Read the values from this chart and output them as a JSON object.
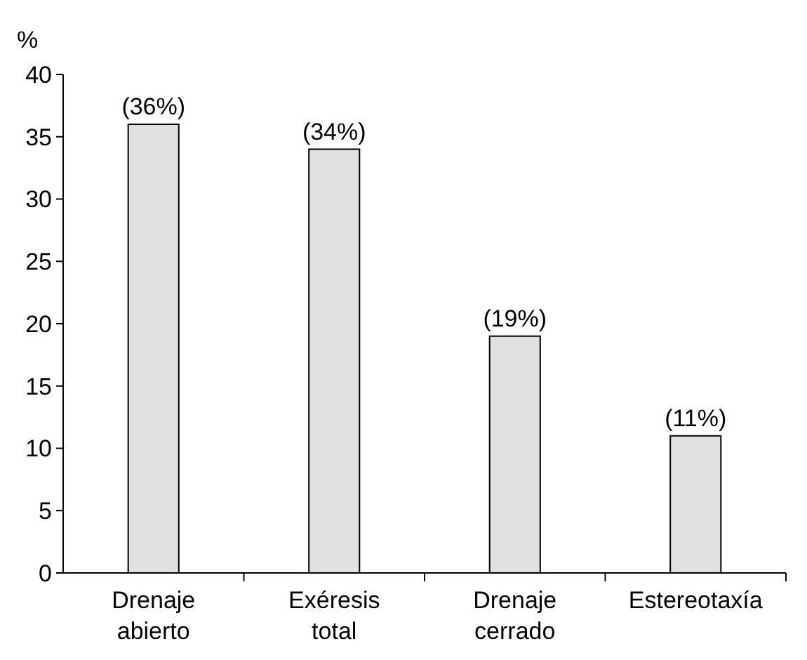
{
  "chart_data": {
    "type": "bar",
    "ylabel": "%",
    "categories": [
      "Drenaje abierto",
      "Exéresis total",
      "Drenaje cerrado",
      "Estereotaxía"
    ],
    "values": [
      36,
      34,
      19,
      11
    ],
    "value_labels": [
      "(36%)",
      "(34%)",
      "(19%)",
      "(11%)"
    ],
    "color": "#e0e0e0",
    "ylim": [
      0,
      40
    ],
    "yticks": [
      0,
      5,
      10,
      15,
      20,
      25,
      30,
      35,
      40
    ],
    "grid": false
  }
}
